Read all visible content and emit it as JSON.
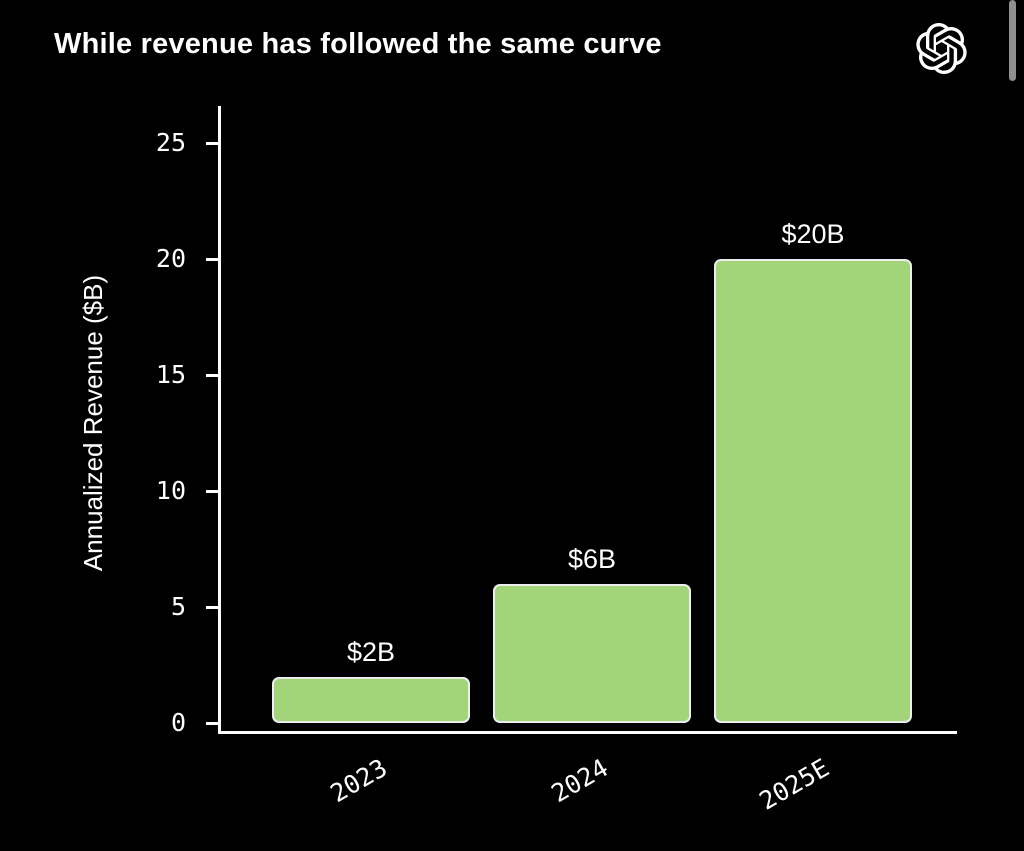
{
  "header": {
    "logo_icon": "openai-logo"
  },
  "scrollbar": {
    "present": true,
    "color": "#8f8f8f"
  },
  "chart_data": {
    "type": "bar",
    "title": "While revenue has followed the same curve",
    "categories": [
      "2023",
      "2024",
      "2025E"
    ],
    "values": [
      2,
      6,
      20
    ],
    "bar_labels": [
      "$2B",
      "$6B",
      "$20B"
    ],
    "xlabel": "",
    "ylabel": "Annualized Revenue ($B)",
    "yticks": [
      0,
      5,
      10,
      15,
      20,
      25
    ],
    "ylim": [
      0,
      25
    ],
    "x_tick_rotation_deg": 30,
    "grid": false,
    "legend": "none",
    "colors": {
      "background": "#000000",
      "bar_fill": "#a2d47a",
      "bar_edge": "#ededed",
      "axis": "#ffffff",
      "text": "#ffffff"
    }
  }
}
